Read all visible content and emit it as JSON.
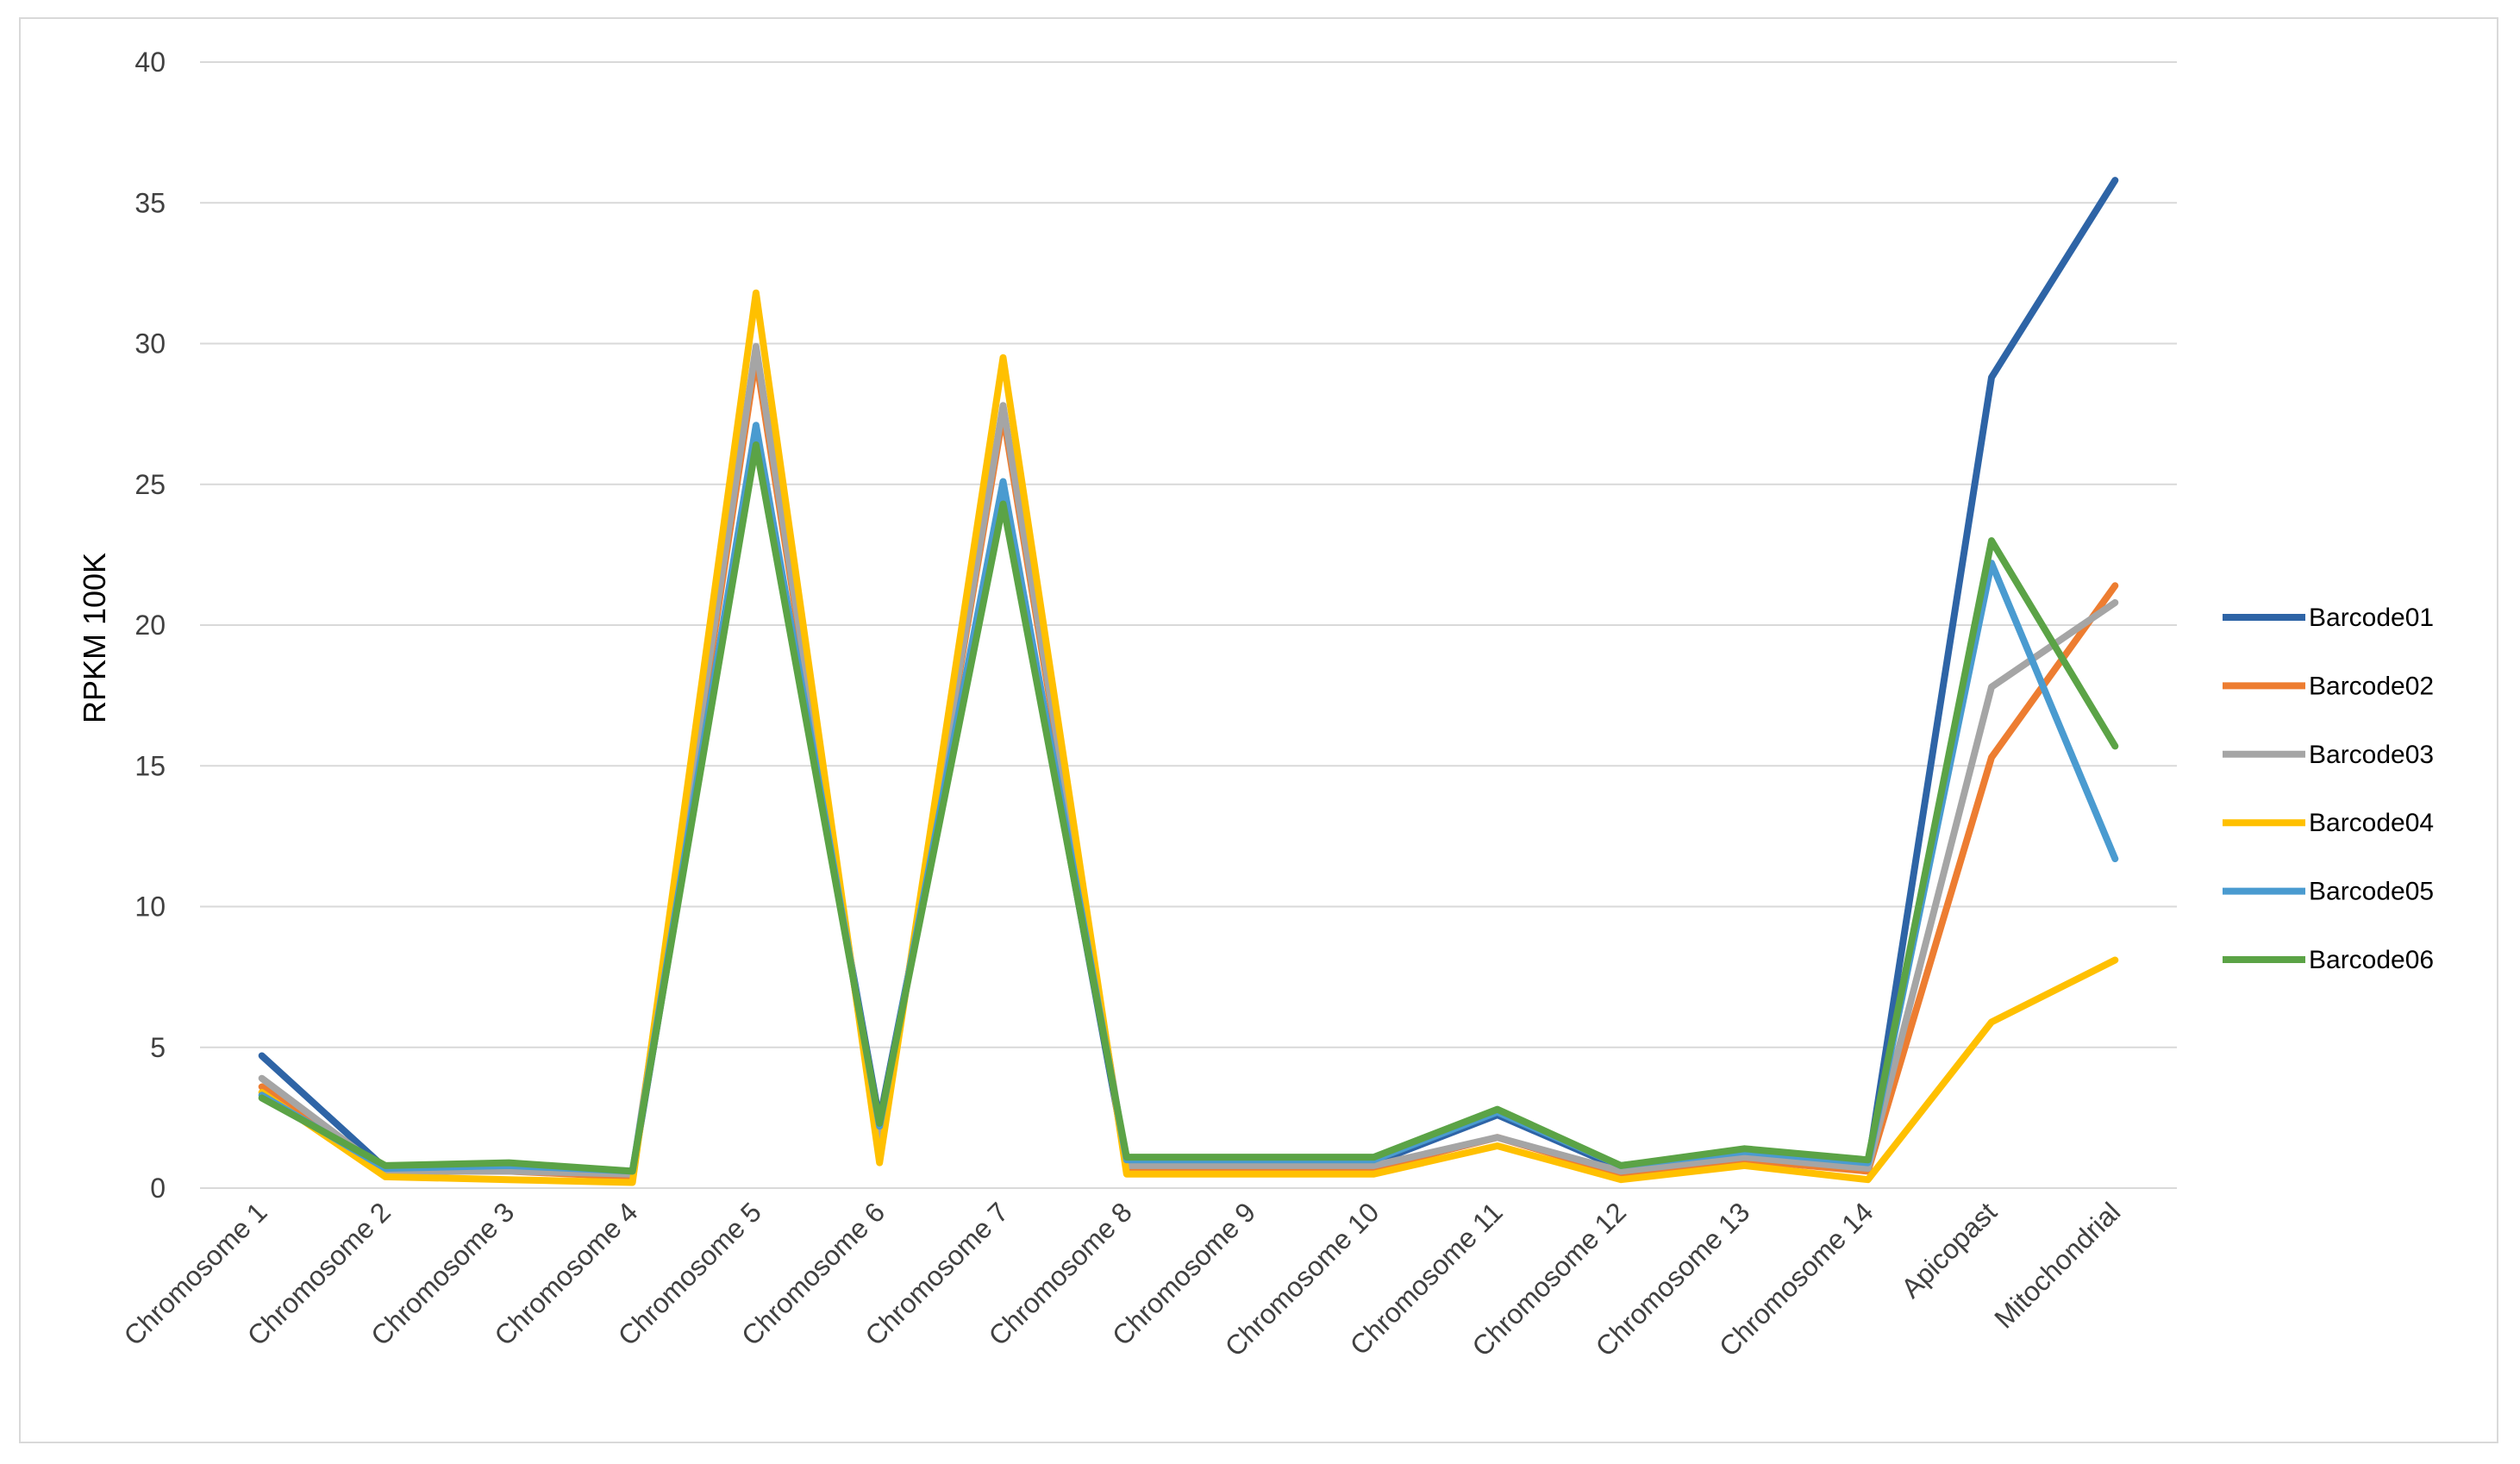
{
  "chart_data": {
    "type": "line",
    "title": "",
    "xlabel": "",
    "ylabel": "RPKM 100K",
    "ylim": [
      0,
      40
    ],
    "yticks": [
      0,
      5,
      10,
      15,
      20,
      25,
      30,
      35,
      40
    ],
    "grid": true,
    "legend_position": "right",
    "categories": [
      "Chromosome 1",
      "Chromosome 2",
      "Chromosome 3",
      "Chromosome 4",
      "Chromosome 5",
      "Chromosome 6",
      "Chromosome 7",
      "Chromosome 8",
      "Chromosome 9",
      "Chromosome 10",
      "Chromosome 11",
      "Chromosome 12",
      "Chromosome 13",
      "Chromosome 14",
      "Apicopast",
      "Mitochondrial"
    ],
    "series": [
      {
        "name": "Barcode01",
        "color": "#2e64a6",
        "values": [
          4.7,
          0.7,
          0.7,
          0.5,
          26.8,
          2.4,
          24.6,
          0.9,
          0.9,
          0.9,
          2.6,
          0.7,
          1.2,
          0.8,
          28.8,
          35.8
        ]
      },
      {
        "name": "Barcode02",
        "color": "#ed7d31",
        "values": [
          3.6,
          0.6,
          0.6,
          0.4,
          29.5,
          1.5,
          27.5,
          0.7,
          0.7,
          0.7,
          1.8,
          0.5,
          1.0,
          0.6,
          15.3,
          21.4
        ]
      },
      {
        "name": "Barcode03",
        "color": "#a5a5a5",
        "values": [
          3.9,
          0.6,
          0.6,
          0.5,
          29.9,
          1.4,
          27.8,
          0.8,
          0.8,
          0.8,
          1.8,
          0.6,
          1.1,
          0.7,
          17.8,
          20.8
        ]
      },
      {
        "name": "Barcode04",
        "color": "#ffc000",
        "values": [
          3.4,
          0.4,
          0.3,
          0.2,
          31.8,
          0.9,
          29.5,
          0.5,
          0.5,
          0.5,
          1.5,
          0.3,
          0.8,
          0.3,
          5.9,
          8.1
        ]
      },
      {
        "name": "Barcode05",
        "color": "#4a9bd0",
        "values": [
          3.3,
          0.7,
          0.8,
          0.6,
          27.1,
          2.2,
          25.1,
          1.0,
          1.0,
          1.0,
          2.7,
          0.8,
          1.3,
          0.9,
          22.2,
          11.7
        ]
      },
      {
        "name": "Barcode06",
        "color": "#5ba346",
        "values": [
          3.2,
          0.8,
          0.9,
          0.6,
          26.4,
          2.3,
          24.3,
          1.1,
          1.1,
          1.1,
          2.8,
          0.8,
          1.4,
          1.0,
          23.0,
          15.7
        ]
      }
    ]
  }
}
